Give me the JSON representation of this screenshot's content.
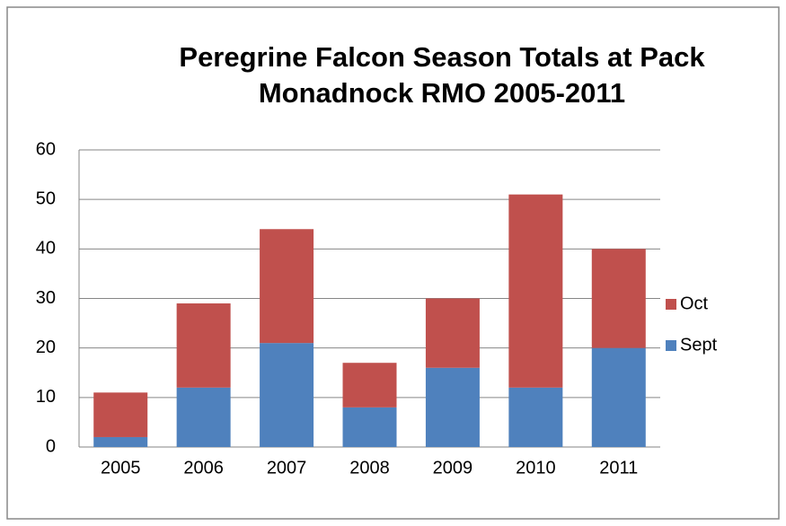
{
  "chart_data": {
    "type": "stacked_bar",
    "title": "Peregrine Falcon Season Totals at Pack Monadnock RMO 2005-2011",
    "categories": [
      "2005",
      "2006",
      "2007",
      "2008",
      "2009",
      "2010",
      "2011"
    ],
    "series": [
      {
        "name": "Sept",
        "color": "#4f81bd",
        "values": [
          2,
          12,
          21,
          8,
          16,
          12,
          20
        ]
      },
      {
        "name": "Oct",
        "color": "#c0504d",
        "values": [
          9,
          17,
          23,
          9,
          14,
          39,
          20
        ]
      }
    ],
    "ylim": [
      0,
      60
    ],
    "yticks": [
      0,
      10,
      20,
      30,
      40,
      50,
      60
    ],
    "grid": true,
    "legend": "right"
  }
}
